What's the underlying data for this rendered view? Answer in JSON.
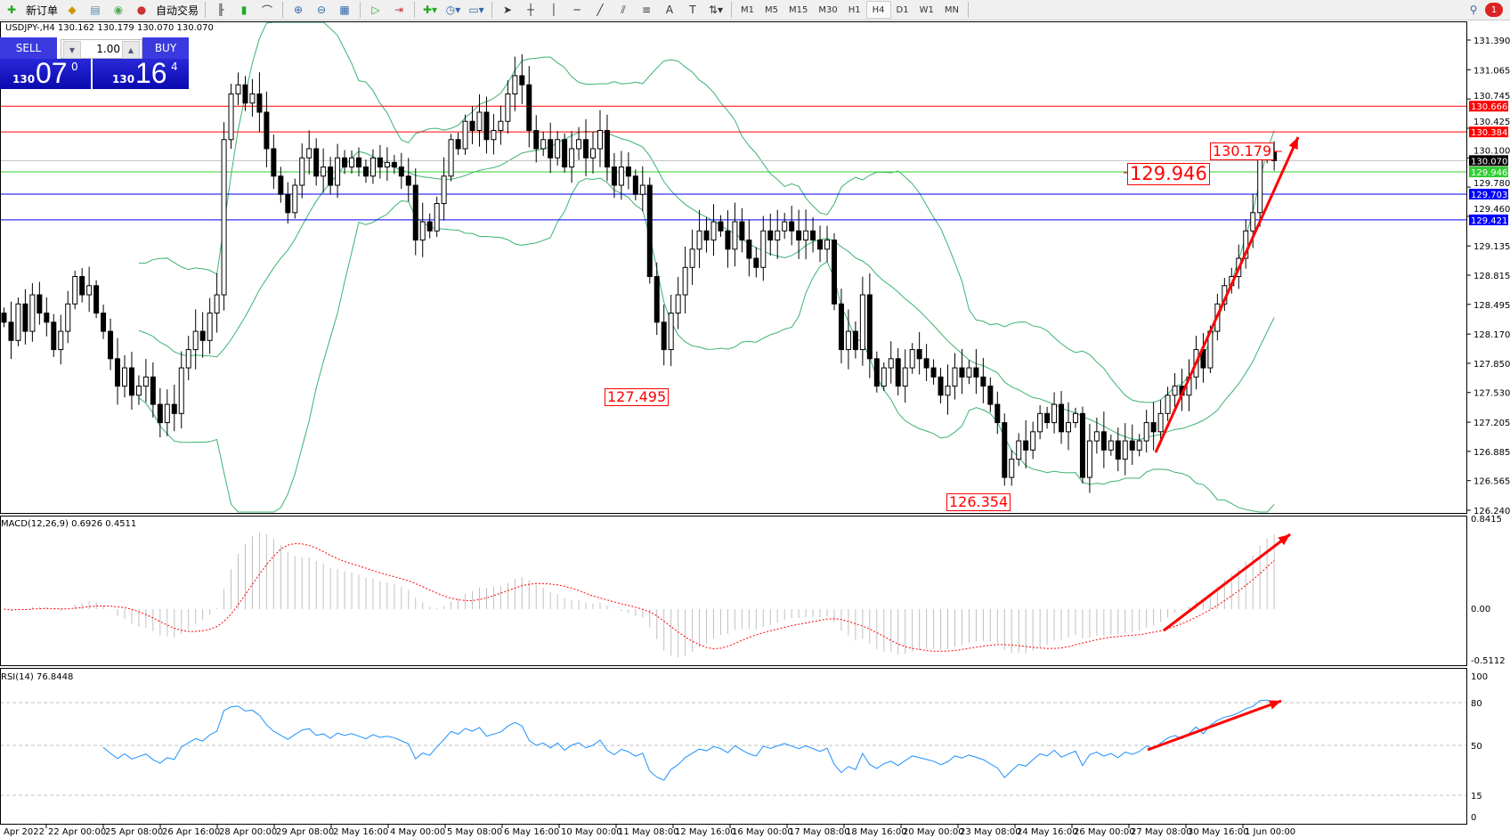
{
  "toolbar": {
    "new_order": "新订单",
    "auto_trading": "自动交易",
    "timeframes": [
      "M1",
      "M5",
      "M15",
      "M30",
      "H1",
      "H4",
      "D1",
      "W1",
      "MN"
    ],
    "active_timeframe": "H4",
    "notification_count": "1"
  },
  "chart": {
    "symbol_info": "USDJPY-,H4  130.162 130.179 130.070 130.070",
    "one_click": {
      "sell_label": "SELL",
      "buy_label": "BUY",
      "lot": "1.00",
      "sell_price": {
        "prefix": "130",
        "big": "07",
        "sup": "0"
      },
      "buy_price": {
        "prefix": "130",
        "big": "16",
        "sup": "4"
      }
    },
    "price_axis": [
      "131.390",
      "131.065",
      "130.745",
      "130.425",
      "130.100",
      "129.780",
      "129.460",
      "129.135",
      "128.815",
      "128.495",
      "128.170",
      "127.850",
      "127.530",
      "127.205",
      "126.885",
      "126.565",
      "126.240"
    ],
    "levels": [
      {
        "value": 130.666,
        "label": "130.666",
        "color": "#ff0000"
      },
      {
        "value": 130.384,
        "label": "130.384",
        "color": "#ff0000"
      },
      {
        "value": 130.07,
        "label": "130.070",
        "color": "#000000",
        "line": "#c0c0c0"
      },
      {
        "value": 129.946,
        "label": "129.946",
        "color": "#32cd32"
      },
      {
        "value": 129.703,
        "label": "129.703",
        "color": "#0000ff"
      },
      {
        "value": 129.421,
        "label": "129.421",
        "color": "#0000ff"
      }
    ],
    "price_labels": [
      "127.495",
      "126.354",
      "129.946",
      "130.179"
    ],
    "dates": [
      "Apr 2022",
      "22 Apr 00:00",
      "25 Apr 08:00",
      "26 Apr 16:00",
      "28 Apr 00:00",
      "29 Apr 08:00",
      "2 May 16:00",
      "4 May 00:00",
      "5 May 08:00",
      "6 May 16:00",
      "10 May 00:00",
      "11 May 08:00",
      "12 May 16:00",
      "16 May 00:00",
      "17 May 08:00",
      "18 May 16:00",
      "20 May 00:00",
      "23 May 08:00",
      "24 May 16:00",
      "26 May 00:00",
      "27 May 08:00",
      "30 May 16:00",
      "1 Jun 00:00"
    ],
    "colors": {
      "bands": "#3cb371",
      "rsi": "#1e90ff",
      "macd_hist": "#c0c0c0",
      "macd_signal": "#ff0000",
      "arrows": "#ff0000"
    }
  },
  "macd": {
    "label": "MACD(12,26,9) 0.6926 0.4511",
    "axis": [
      "0.8415",
      "0.00",
      "-0.5112"
    ],
    "max": 0.8415,
    "min": -0.5112
  },
  "rsi": {
    "label": "RSI(14) 76.8448",
    "axis": [
      "100",
      "80",
      "50",
      "15",
      "0"
    ],
    "levels": [
      80,
      50,
      15
    ]
  },
  "chart_data": {
    "type": "candlestick",
    "symbol": "USDJPY",
    "timeframe": "H4",
    "ylim": [
      126.24,
      131.39
    ],
    "close": [
      128.3,
      128.1,
      128.5,
      128.2,
      128.6,
      128.4,
      128.3,
      128.0,
      128.2,
      128.5,
      128.8,
      128.6,
      128.7,
      128.4,
      128.2,
      127.9,
      127.6,
      127.8,
      127.5,
      127.6,
      127.7,
      127.4,
      127.2,
      127.4,
      127.3,
      127.8,
      128.0,
      128.2,
      128.1,
      128.4,
      128.6,
      130.3,
      130.8,
      130.9,
      130.7,
      130.8,
      130.6,
      130.2,
      129.9,
      129.7,
      129.5,
      129.8,
      130.1,
      130.2,
      129.9,
      130.0,
      129.8,
      130.1,
      130.0,
      130.1,
      130.0,
      129.9,
      130.1,
      130.0,
      130.05,
      130.0,
      129.9,
      129.8,
      129.2,
      129.4,
      129.3,
      129.6,
      129.9,
      130.3,
      130.2,
      130.5,
      130.4,
      130.6,
      130.3,
      130.4,
      130.5,
      130.8,
      131.0,
      130.9,
      130.4,
      130.2,
      130.3,
      130.1,
      130.3,
      130.0,
      130.2,
      130.3,
      130.1,
      130.2,
      130.4,
      130.0,
      129.8,
      130.0,
      129.9,
      129.7,
      129.8,
      128.8,
      128.3,
      128.0,
      128.4,
      128.6,
      128.9,
      129.1,
      129.3,
      129.2,
      129.4,
      129.3,
      129.1,
      129.4,
      129.2,
      129.0,
      128.9,
      129.3,
      129.2,
      129.3,
      129.4,
      129.3,
      129.2,
      129.3,
      129.2,
      129.1,
      129.2,
      128.5,
      128.0,
      128.2,
      128.0,
      128.6,
      127.9,
      127.6,
      127.8,
      127.9,
      127.6,
      127.8,
      128.0,
      127.9,
      127.8,
      127.7,
      127.5,
      127.6,
      127.8,
      127.7,
      127.8,
      127.7,
      127.6,
      127.4,
      127.2,
      126.6,
      126.8,
      127.0,
      126.9,
      127.1,
      127.3,
      127.2,
      127.4,
      127.1,
      127.2,
      127.3,
      126.6,
      127.0,
      127.1,
      126.9,
      127.0,
      126.8,
      127.0,
      126.9,
      127.0,
      127.2,
      127.1,
      127.3,
      127.5,
      127.6,
      127.5,
      127.7,
      128.0,
      127.8,
      128.2,
      128.5,
      128.7,
      128.8,
      129.0,
      129.3,
      129.5,
      130.1,
      130.16,
      130.07
    ]
  }
}
